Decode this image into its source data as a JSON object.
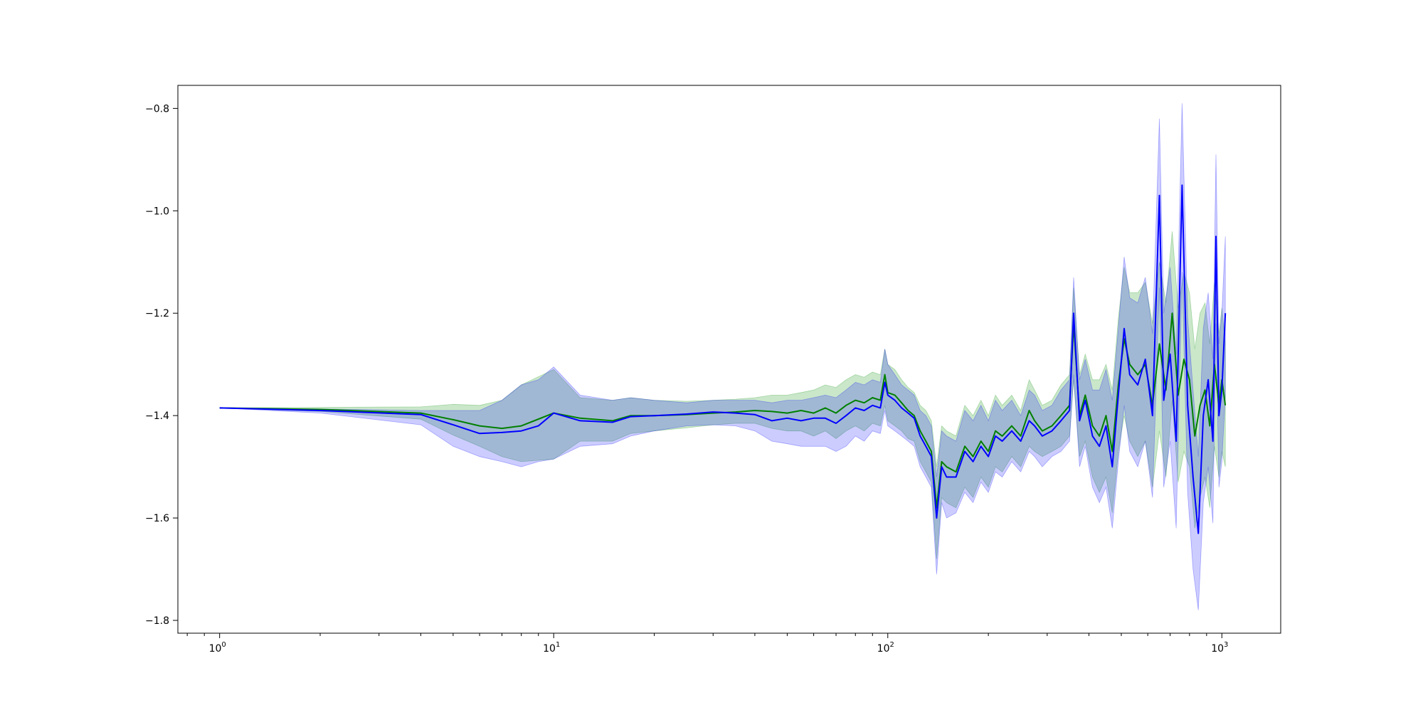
{
  "chart_data": {
    "type": "line",
    "title": "",
    "xlabel": "",
    "ylabel": "",
    "x_scale": "log",
    "xlim": [
      0.75,
      1500
    ],
    "ylim": [
      -1.825,
      -0.755
    ],
    "grid": false,
    "x_ticks": [
      {
        "value": 1,
        "base": "10",
        "exp": "0"
      },
      {
        "value": 10,
        "base": "10",
        "exp": "1"
      },
      {
        "value": 100,
        "base": "10",
        "exp": "2"
      },
      {
        "value": 1000,
        "base": "10",
        "exp": "3"
      }
    ],
    "y_ticks": [
      {
        "value": -0.8,
        "label": "−0.8"
      },
      {
        "value": -1.0,
        "label": "−1.0"
      },
      {
        "value": -1.2,
        "label": "−1.2"
      },
      {
        "value": -1.4,
        "label": "−1.4"
      },
      {
        "value": -1.6,
        "label": "−1.6"
      },
      {
        "value": -1.8,
        "label": "−1.8"
      }
    ],
    "series": [
      {
        "color": "#008000",
        "band_color": "#2ca02c",
        "band_opacity": 0.25,
        "points": [
          [
            1,
            -1.385,
            -1.385,
            -1.385
          ],
          [
            2,
            -1.388,
            -1.384,
            -1.392
          ],
          [
            4,
            -1.395,
            -1.383,
            -1.407
          ],
          [
            5,
            -1.408,
            -1.378,
            -1.438
          ],
          [
            6,
            -1.42,
            -1.38,
            -1.46
          ],
          [
            7,
            -1.425,
            -1.37,
            -1.48
          ],
          [
            8,
            -1.42,
            -1.34,
            -1.49
          ],
          [
            10,
            -1.395,
            -1.31,
            -1.485
          ],
          [
            12,
            -1.405,
            -1.365,
            -1.45
          ],
          [
            15,
            -1.41,
            -1.37,
            -1.45
          ],
          [
            17,
            -1.4,
            -1.365,
            -1.435
          ],
          [
            20,
            -1.4,
            -1.37,
            -1.43
          ],
          [
            25,
            -1.398,
            -1.372,
            -1.424
          ],
          [
            30,
            -1.395,
            -1.37,
            -1.418
          ],
          [
            35,
            -1.393,
            -1.368,
            -1.415
          ],
          [
            40,
            -1.39,
            -1.365,
            -1.415
          ],
          [
            45,
            -1.392,
            -1.36,
            -1.425
          ],
          [
            50,
            -1.395,
            -1.36,
            -1.43
          ],
          [
            55,
            -1.39,
            -1.355,
            -1.43
          ],
          [
            60,
            -1.395,
            -1.35,
            -1.44
          ],
          [
            65,
            -1.385,
            -1.34,
            -1.43
          ],
          [
            70,
            -1.395,
            -1.345,
            -1.445
          ],
          [
            75,
            -1.38,
            -1.33,
            -1.43
          ],
          [
            80,
            -1.37,
            -1.32,
            -1.42
          ],
          [
            85,
            -1.375,
            -1.325,
            -1.43
          ],
          [
            90,
            -1.365,
            -1.315,
            -1.415
          ],
          [
            95,
            -1.37,
            -1.32,
            -1.42
          ],
          [
            98,
            -1.32,
            -1.27,
            -1.38
          ],
          [
            100,
            -1.355,
            -1.3,
            -1.41
          ],
          [
            105,
            -1.36,
            -1.31,
            -1.42
          ],
          [
            110,
            -1.375,
            -1.33,
            -1.43
          ],
          [
            115,
            -1.39,
            -1.345,
            -1.445
          ],
          [
            120,
            -1.4,
            -1.355,
            -1.45
          ],
          [
            125,
            -1.43,
            -1.38,
            -1.49
          ],
          [
            130,
            -1.45,
            -1.39,
            -1.51
          ],
          [
            135,
            -1.47,
            -1.41,
            -1.53
          ],
          [
            140,
            -1.58,
            -1.5,
            -1.68
          ],
          [
            145,
            -1.49,
            -1.42,
            -1.56
          ],
          [
            150,
            -1.5,
            -1.43,
            -1.57
          ],
          [
            160,
            -1.51,
            -1.44,
            -1.58
          ],
          [
            170,
            -1.46,
            -1.38,
            -1.54
          ],
          [
            180,
            -1.48,
            -1.4,
            -1.56
          ],
          [
            190,
            -1.45,
            -1.37,
            -1.52
          ],
          [
            200,
            -1.47,
            -1.4,
            -1.54
          ],
          [
            210,
            -1.43,
            -1.36,
            -1.5
          ],
          [
            220,
            -1.44,
            -1.38,
            -1.51
          ],
          [
            235,
            -1.42,
            -1.36,
            -1.48
          ],
          [
            250,
            -1.44,
            -1.39,
            -1.5
          ],
          [
            265,
            -1.39,
            -1.33,
            -1.46
          ],
          [
            275,
            -1.41,
            -1.35,
            -1.47
          ],
          [
            290,
            -1.43,
            -1.38,
            -1.48
          ],
          [
            310,
            -1.42,
            -1.37,
            -1.47
          ],
          [
            330,
            -1.4,
            -1.34,
            -1.46
          ],
          [
            350,
            -1.38,
            -1.32,
            -1.44
          ],
          [
            360,
            -1.22,
            -1.15,
            -1.33
          ],
          [
            375,
            -1.4,
            -1.32,
            -1.48
          ],
          [
            390,
            -1.36,
            -1.28,
            -1.45
          ],
          [
            410,
            -1.42,
            -1.33,
            -1.52
          ],
          [
            430,
            -1.44,
            -1.33,
            -1.55
          ],
          [
            450,
            -1.4,
            -1.3,
            -1.52
          ],
          [
            470,
            -1.47,
            -1.35,
            -1.59
          ],
          [
            490,
            -1.34,
            -1.21,
            -1.47
          ],
          [
            510,
            -1.25,
            -1.11,
            -1.4
          ],
          [
            530,
            -1.3,
            -1.16,
            -1.45
          ],
          [
            560,
            -1.32,
            -1.16,
            -1.48
          ],
          [
            590,
            -1.3,
            -1.14,
            -1.45
          ],
          [
            620,
            -1.38,
            -1.22,
            -1.54
          ],
          [
            650,
            -1.26,
            -1.1,
            -1.43
          ],
          [
            680,
            -1.35,
            -1.18,
            -1.52
          ],
          [
            710,
            -1.2,
            -1.04,
            -1.37
          ],
          [
            740,
            -1.36,
            -1.19,
            -1.53
          ],
          [
            770,
            -1.29,
            -1.12,
            -1.47
          ],
          [
            800,
            -1.33,
            -1.16,
            -1.5
          ],
          [
            830,
            -1.44,
            -1.27,
            -1.62
          ],
          [
            860,
            -1.38,
            -1.2,
            -1.56
          ],
          [
            890,
            -1.35,
            -1.18,
            -1.52
          ],
          [
            920,
            -1.42,
            -1.26,
            -1.58
          ],
          [
            950,
            -1.3,
            -1.14,
            -1.46
          ],
          [
            980,
            -1.38,
            -1.24,
            -1.52
          ],
          [
            1000,
            -1.33,
            -1.19,
            -1.47
          ],
          [
            1024,
            -1.38,
            -1.26,
            -1.5
          ]
        ]
      },
      {
        "color": "#0000ff",
        "band_color": "#0000ff",
        "band_opacity": 0.2,
        "points": [
          [
            1,
            -1.385,
            -1.385,
            -1.385
          ],
          [
            2,
            -1.39,
            -1.387,
            -1.395
          ],
          [
            4,
            -1.398,
            -1.39,
            -1.418
          ],
          [
            5,
            -1.418,
            -1.39,
            -1.46
          ],
          [
            6,
            -1.435,
            -1.39,
            -1.48
          ],
          [
            7,
            -1.433,
            -1.37,
            -1.49
          ],
          [
            8,
            -1.43,
            -1.34,
            -1.5
          ],
          [
            9,
            -1.42,
            -1.33,
            -1.49
          ],
          [
            10,
            -1.395,
            -1.305,
            -1.485
          ],
          [
            12,
            -1.41,
            -1.36,
            -1.46
          ],
          [
            15,
            -1.413,
            -1.37,
            -1.455
          ],
          [
            17,
            -1.402,
            -1.365,
            -1.44
          ],
          [
            20,
            -1.4,
            -1.37,
            -1.43
          ],
          [
            25,
            -1.397,
            -1.375,
            -1.42
          ],
          [
            30,
            -1.393,
            -1.37,
            -1.418
          ],
          [
            35,
            -1.395,
            -1.37,
            -1.42
          ],
          [
            40,
            -1.398,
            -1.37,
            -1.43
          ],
          [
            45,
            -1.41,
            -1.375,
            -1.45
          ],
          [
            50,
            -1.405,
            -1.37,
            -1.455
          ],
          [
            55,
            -1.41,
            -1.37,
            -1.46
          ],
          [
            60,
            -1.405,
            -1.365,
            -1.46
          ],
          [
            65,
            -1.405,
            -1.36,
            -1.46
          ],
          [
            70,
            -1.415,
            -1.365,
            -1.47
          ],
          [
            75,
            -1.4,
            -1.35,
            -1.46
          ],
          [
            80,
            -1.385,
            -1.335,
            -1.44
          ],
          [
            85,
            -1.39,
            -1.34,
            -1.45
          ],
          [
            90,
            -1.38,
            -1.33,
            -1.43
          ],
          [
            95,
            -1.385,
            -1.335,
            -1.435
          ],
          [
            98,
            -1.335,
            -1.27,
            -1.39
          ],
          [
            100,
            -1.36,
            -1.3,
            -1.42
          ],
          [
            105,
            -1.37,
            -1.32,
            -1.43
          ],
          [
            110,
            -1.385,
            -1.34,
            -1.44
          ],
          [
            115,
            -1.395,
            -1.35,
            -1.45
          ],
          [
            120,
            -1.405,
            -1.36,
            -1.46
          ],
          [
            125,
            -1.44,
            -1.39,
            -1.5
          ],
          [
            130,
            -1.46,
            -1.4,
            -1.52
          ],
          [
            135,
            -1.48,
            -1.42,
            -1.54
          ],
          [
            140,
            -1.6,
            -1.52,
            -1.71
          ],
          [
            145,
            -1.5,
            -1.43,
            -1.57
          ],
          [
            150,
            -1.52,
            -1.44,
            -1.6
          ],
          [
            160,
            -1.52,
            -1.45,
            -1.59
          ],
          [
            170,
            -1.47,
            -1.39,
            -1.55
          ],
          [
            180,
            -1.49,
            -1.41,
            -1.57
          ],
          [
            190,
            -1.46,
            -1.38,
            -1.53
          ],
          [
            200,
            -1.48,
            -1.41,
            -1.55
          ],
          [
            210,
            -1.44,
            -1.37,
            -1.51
          ],
          [
            220,
            -1.45,
            -1.39,
            -1.52
          ],
          [
            235,
            -1.43,
            -1.37,
            -1.49
          ],
          [
            250,
            -1.45,
            -1.4,
            -1.51
          ],
          [
            265,
            -1.41,
            -1.35,
            -1.47
          ],
          [
            275,
            -1.42,
            -1.36,
            -1.48
          ],
          [
            290,
            -1.44,
            -1.39,
            -1.5
          ],
          [
            310,
            -1.43,
            -1.38,
            -1.48
          ],
          [
            330,
            -1.41,
            -1.35,
            -1.47
          ],
          [
            350,
            -1.39,
            -1.33,
            -1.45
          ],
          [
            360,
            -1.2,
            -1.13,
            -1.32
          ],
          [
            375,
            -1.41,
            -1.33,
            -1.5
          ],
          [
            390,
            -1.37,
            -1.29,
            -1.46
          ],
          [
            410,
            -1.44,
            -1.35,
            -1.54
          ],
          [
            430,
            -1.46,
            -1.35,
            -1.57
          ],
          [
            450,
            -1.42,
            -1.31,
            -1.54
          ],
          [
            470,
            -1.5,
            -1.37,
            -1.62
          ],
          [
            490,
            -1.36,
            -1.23,
            -1.49
          ],
          [
            510,
            -1.23,
            -1.09,
            -1.38
          ],
          [
            530,
            -1.32,
            -1.17,
            -1.47
          ],
          [
            560,
            -1.34,
            -1.18,
            -1.5
          ],
          [
            590,
            -1.29,
            -1.13,
            -1.45
          ],
          [
            620,
            -1.4,
            -1.24,
            -1.56
          ],
          [
            650,
            -0.97,
            -0.82,
            -1.15
          ],
          [
            670,
            -1.37,
            -1.2,
            -1.54
          ],
          [
            700,
            -1.28,
            -1.11,
            -1.45
          ],
          [
            730,
            -1.45,
            -1.28,
            -1.62
          ],
          [
            760,
            -0.95,
            -0.79,
            -1.12
          ],
          [
            790,
            -1.38,
            -1.21,
            -1.55
          ],
          [
            820,
            -1.52,
            -1.35,
            -1.7
          ],
          [
            850,
            -1.63,
            -1.48,
            -1.78
          ],
          [
            880,
            -1.4,
            -1.23,
            -1.57
          ],
          [
            910,
            -1.33,
            -1.16,
            -1.5
          ],
          [
            940,
            -1.45,
            -1.29,
            -1.61
          ],
          [
            960,
            -1.05,
            -0.89,
            -1.22
          ],
          [
            980,
            -1.4,
            -1.26,
            -1.54
          ],
          [
            1000,
            -1.35,
            -1.2,
            -1.49
          ],
          [
            1024,
            -1.2,
            -1.05,
            -1.36
          ]
        ]
      }
    ]
  }
}
